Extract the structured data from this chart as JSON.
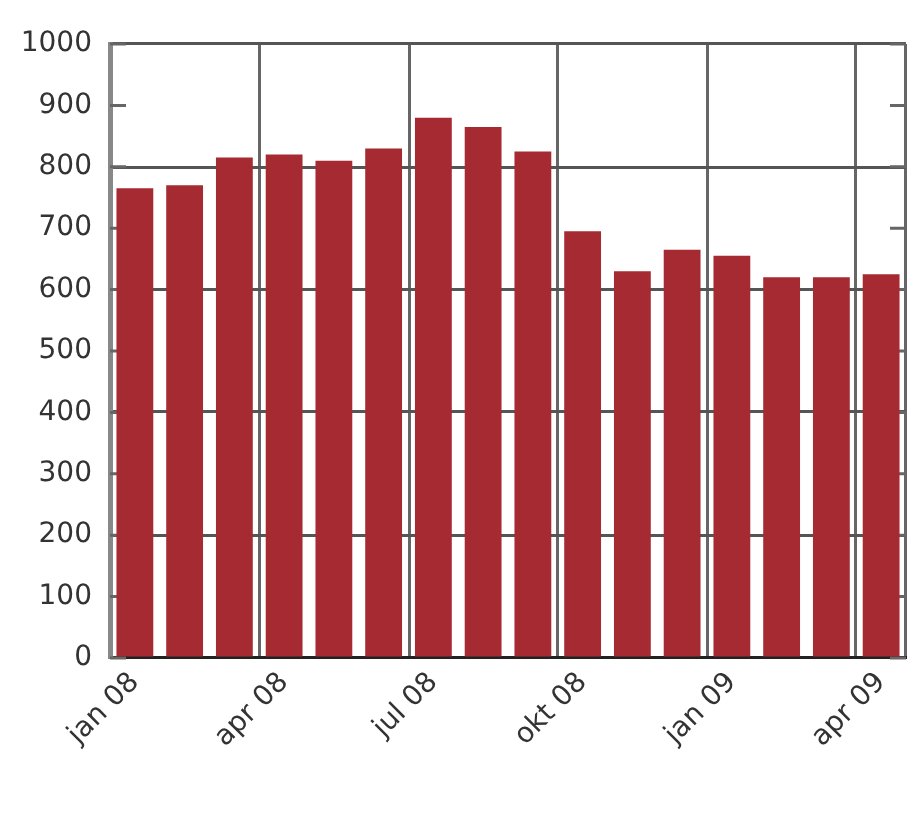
{
  "chart_data": {
    "type": "bar",
    "categories": [
      "jan 08",
      null,
      null,
      "apr 08",
      null,
      null,
      "jul 08",
      null,
      null,
      "okt 08",
      null,
      null,
      "jan 09",
      null,
      null,
      "apr 09"
    ],
    "values": [
      765,
      770,
      815,
      820,
      810,
      830,
      880,
      865,
      825,
      695,
      630,
      665,
      655,
      620,
      620,
      625
    ],
    "color": "#a52a32",
    "ylim": [
      0,
      1000
    ],
    "yticks": [
      0,
      100,
      200,
      300,
      400,
      500,
      600,
      700,
      800,
      900,
      1000
    ],
    "grid": true
  }
}
